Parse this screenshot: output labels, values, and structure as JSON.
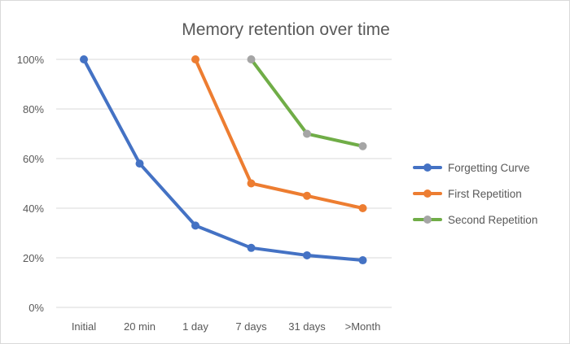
{
  "chart_data": {
    "type": "line",
    "title": "Memory retention over time",
    "xlabel": "",
    "ylabel": "",
    "categories": [
      "Initial",
      "20 min",
      "1 day",
      "7 days",
      "31 days",
      ">Month"
    ],
    "y_ticks": [
      "0%",
      "20%",
      "40%",
      "60%",
      "80%",
      "100%"
    ],
    "ylim": [
      0,
      100
    ],
    "grid": true,
    "legend_position": "right",
    "series": [
      {
        "name": "Forgetting Curve",
        "line_color": "#4472c4",
        "marker_color": "#4472c4",
        "values": [
          100,
          58,
          33,
          24,
          21,
          19
        ]
      },
      {
        "name": "First Repetition",
        "line_color": "#ed7d31",
        "marker_color": "#ed7d31",
        "values": [
          null,
          null,
          100,
          50,
          45,
          40
        ]
      },
      {
        "name": "Second Repetition",
        "line_color": "#70ad47",
        "marker_color": "#a5a5a5",
        "values": [
          null,
          null,
          null,
          100,
          70,
          65
        ]
      }
    ]
  }
}
